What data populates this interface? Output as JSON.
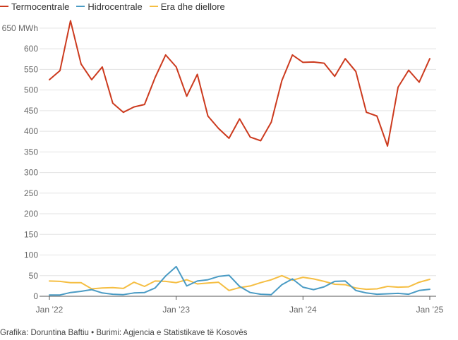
{
  "chart_data": {
    "type": "line",
    "title": "",
    "xlabel": "",
    "ylabel": "",
    "y_unit": "MWh",
    "ylim": [
      0,
      650
    ],
    "yticks": [
      0,
      50,
      100,
      150,
      200,
      250,
      300,
      350,
      400,
      450,
      500,
      550,
      600,
      650
    ],
    "top_tick_label": "650 MWh",
    "xlim": [
      "2022-01",
      "2025-01"
    ],
    "xticks": [
      {
        "label": "Jan ’22",
        "month": "2022-01"
      },
      {
        "label": "Jan ’23",
        "month": "2023-01"
      },
      {
        "label": "Jan ’24",
        "month": "2024-01"
      },
      {
        "label": "Jan ’25",
        "month": "2025-01"
      }
    ],
    "grid": true,
    "legend_position": "top-left",
    "x": [
      "2022-01",
      "2022-02",
      "2022-03",
      "2022-04",
      "2022-05",
      "2022-06",
      "2022-07",
      "2022-08",
      "2022-09",
      "2022-10",
      "2022-11",
      "2022-12",
      "2023-01",
      "2023-02",
      "2023-03",
      "2023-04",
      "2023-05",
      "2023-06",
      "2023-07",
      "2023-08",
      "2023-09",
      "2023-10",
      "2023-11",
      "2023-12",
      "2024-01",
      "2024-02",
      "2024-03",
      "2024-04",
      "2024-05",
      "2024-06",
      "2024-07",
      "2024-08",
      "2024-09",
      "2024-10",
      "2024-11",
      "2024-12",
      "2025-01"
    ],
    "series": [
      {
        "name": "Termocentrale",
        "color": "#cc3a1e",
        "values": [
          525,
          547,
          668,
          563,
          525,
          556,
          468,
          446,
          459,
          465,
          530,
          585,
          556,
          485,
          538,
          437,
          407,
          383,
          430,
          386,
          377,
          422,
          523,
          585,
          567,
          568,
          565,
          533,
          576,
          545,
          446,
          437,
          364,
          507,
          548,
          519,
          576
        ]
      },
      {
        "name": "Hidrocentrale",
        "color": "#4a9bc4",
        "values": [
          3,
          3,
          9,
          12,
          16,
          8,
          5,
          4,
          8,
          9,
          20,
          49,
          72,
          25,
          37,
          40,
          48,
          51,
          24,
          9,
          5,
          4,
          28,
          42,
          22,
          16,
          23,
          36,
          37,
          14,
          8,
          5,
          6,
          7,
          5,
          14,
          17
        ]
      },
      {
        "name": "Era dhe diellore",
        "color": "#f5be42",
        "values": [
          37,
          36,
          33,
          33,
          18,
          20,
          21,
          19,
          34,
          24,
          37,
          36,
          33,
          40,
          30,
          32,
          34,
          14,
          21,
          25,
          33,
          40,
          50,
          39,
          46,
          42,
          36,
          29,
          28,
          20,
          17,
          18,
          24,
          22,
          23,
          34,
          41
        ]
      }
    ]
  },
  "source_text": "Grafika: Doruntina Baftiu • Burimi: Agjencia e Statistikave të Kosovës"
}
